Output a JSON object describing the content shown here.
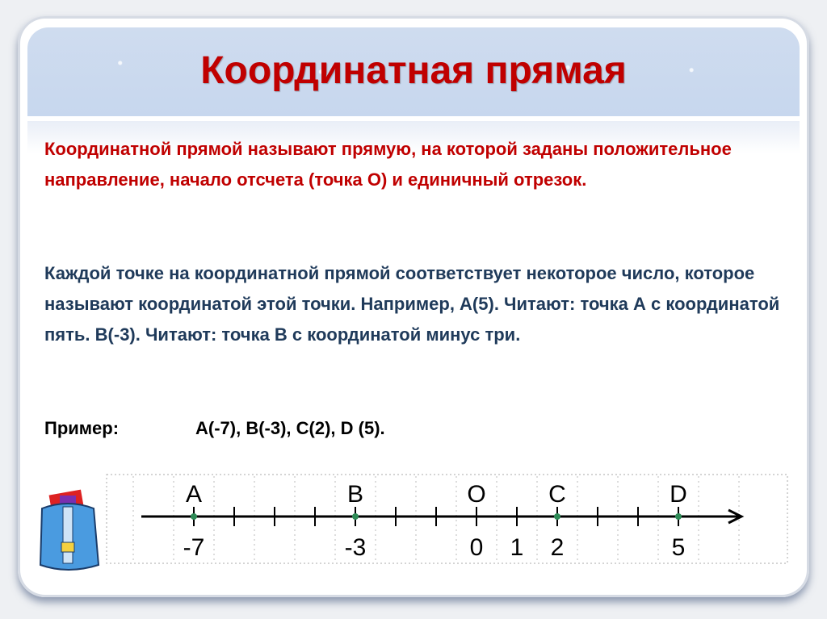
{
  "title": "Координатная прямая",
  "definition": "Координатной прямой называют прямую, на которой заданы положительное направление, начало отсчета (точка О) и единичный отрезок.",
  "explanation": "Каждой точке на координатной прямой соответствует некоторое число, которое называют координатой этой точки. Например, А(5). Читают: точка А с координатой пять.  В(-3). Читают: точка В с координатой минус три.",
  "example": {
    "label": "Пример:",
    "value": "А(-7), В(-3), С(2), D (5)."
  },
  "number_line": {
    "ticks_from": -7,
    "ticks_to": 5,
    "tick_labels": [
      {
        "v": -7,
        "t": "-7"
      },
      {
        "v": -3,
        "t": "-3"
      },
      {
        "v": 0,
        "t": "0"
      },
      {
        "v": 1,
        "t": "1"
      },
      {
        "v": 2,
        "t": "2"
      },
      {
        "v": 5,
        "t": "5"
      }
    ],
    "points": [
      {
        "name": "A",
        "v": -7
      },
      {
        "name": "B",
        "v": -3
      },
      {
        "name": "O",
        "v": 0,
        "origin": true
      },
      {
        "name": "C",
        "v": 2
      },
      {
        "name": "D",
        "v": 5
      }
    ],
    "point_color": "#2e8b57"
  },
  "colors": {
    "title": "#c00000",
    "definition": "#c00000",
    "explanation": "#1f3a5a"
  },
  "icons": [
    "school-bag-icon"
  ]
}
